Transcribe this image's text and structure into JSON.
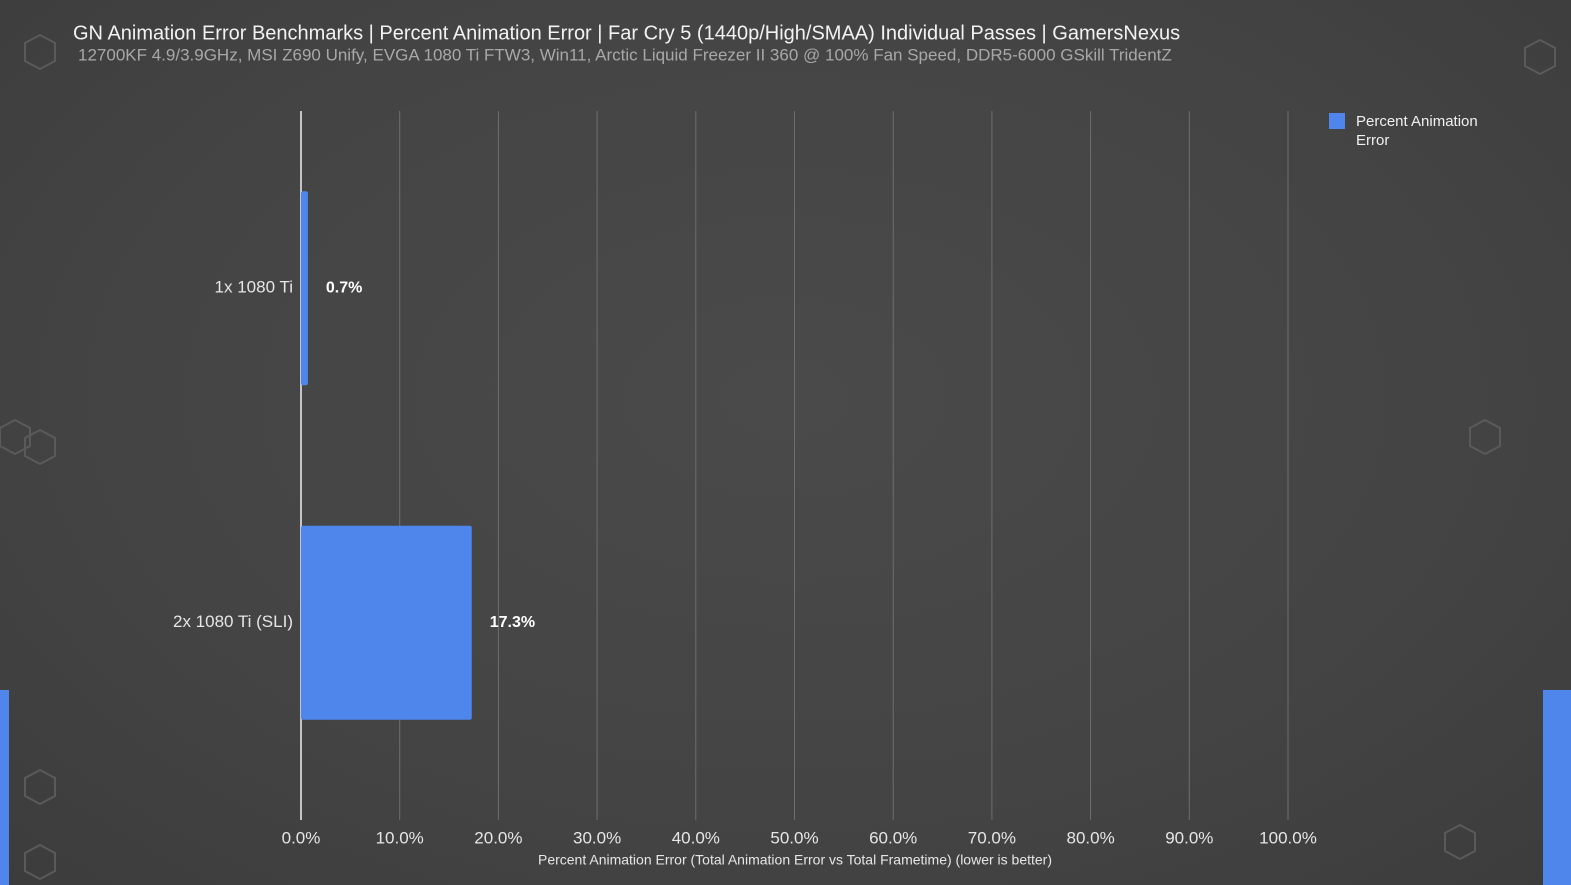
{
  "chart_data": {
    "type": "bar",
    "orientation": "horizontal",
    "title": "GN Animation Error Benchmarks | Percent Animation Error | Far Cry 5 (1440p/High/SMAA) Individual Passes | GamersNexus",
    "subtitle": "12700KF 4.9/3.9GHz, MSI Z690 Unify, EVGA 1080 Ti FTW3, Win11, Arctic Liquid Freezer II 360 @ 100% Fan Speed, DDR5-6000 GSkill TridentZ",
    "xlabel": "Percent Animation Error (Total Animation Error vs Total Frametime) (lower is better)",
    "categories": [
      "1x 1080 Ti",
      "2x 1080 Ti (SLI)"
    ],
    "series": [
      {
        "name": "Percent Animation Error",
        "color": "#4f86ec",
        "values": [
          0.7,
          17.3
        ],
        "value_labels": [
          "0.7%",
          "17.3%"
        ]
      }
    ],
    "xlim": [
      0,
      100
    ],
    "xticks": [
      {
        "value": 0,
        "label": "0.0%"
      },
      {
        "value": 10,
        "label": "10.0%"
      },
      {
        "value": 20,
        "label": "20.0%"
      },
      {
        "value": 30,
        "label": "30.0%"
      },
      {
        "value": 40,
        "label": "40.0%"
      },
      {
        "value": 50,
        "label": "50.0%"
      },
      {
        "value": 60,
        "label": "60.0%"
      },
      {
        "value": 70,
        "label": "70.0%"
      },
      {
        "value": 80,
        "label": "80.0%"
      },
      {
        "value": 90,
        "label": "90.0%"
      },
      {
        "value": 100,
        "label": "100.0%"
      }
    ],
    "grid": true,
    "legend": "top-right"
  }
}
